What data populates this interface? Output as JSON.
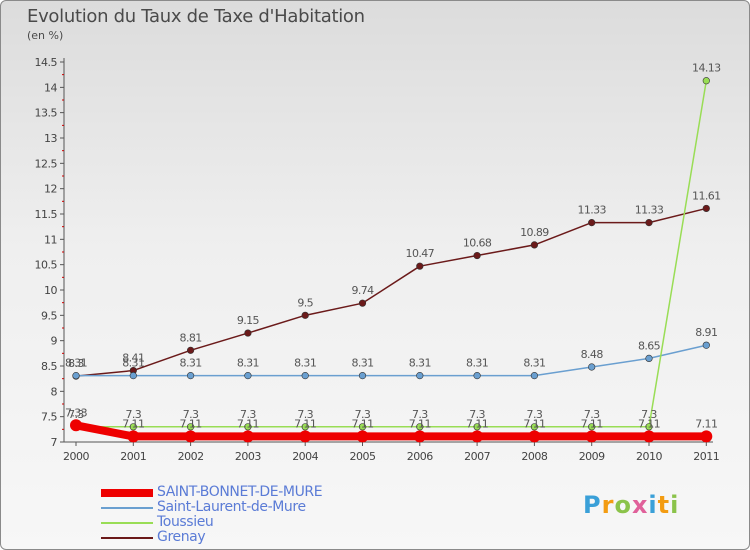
{
  "chart_data": {
    "type": "line",
    "title": "Evolution du Taux de Taxe d'Habitation",
    "subtitle": "(en %)",
    "x": [
      "2000",
      "2001",
      "2002",
      "2003",
      "2004",
      "2005",
      "2006",
      "2007",
      "2008",
      "2009",
      "2010",
      "2011"
    ],
    "ylim": [
      7,
      14.5
    ],
    "yticks": [
      "7",
      "7.5",
      "8",
      "8.5",
      "9",
      "9.5",
      "10",
      "10.5",
      "11",
      "11.5",
      "12",
      "12.5",
      "13",
      "13.5",
      "14",
      "14.5"
    ],
    "series": [
      {
        "name": "SAINT-BONNET-DE-MURE",
        "color": "#ee0000",
        "values": [
          7.33,
          7.11,
          7.11,
          7.11,
          7.11,
          7.11,
          7.11,
          7.11,
          7.11,
          7.11,
          7.11,
          7.11
        ],
        "labels": [
          "7.33",
          "7.11",
          "7.11",
          "7.11",
          "7.11",
          "7.11",
          "7.11",
          "7.11",
          "7.11",
          "7.11",
          "7.11",
          "7.11"
        ]
      },
      {
        "name": "Saint-Laurent-de-Mure",
        "color": "#6a9fd0",
        "values": [
          8.31,
          8.31,
          8.31,
          8.31,
          8.31,
          8.31,
          8.31,
          8.31,
          8.31,
          8.48,
          8.65,
          8.91
        ],
        "labels": [
          "8.31",
          "8.31",
          "8.31",
          "8.31",
          "8.31",
          "8.31",
          "8.31",
          "8.31",
          "8.31",
          "8.48",
          "8.65",
          "8.91"
        ]
      },
      {
        "name": "Toussieu",
        "color": "#99dd55",
        "values": [
          7.3,
          7.3,
          7.3,
          7.3,
          7.3,
          7.3,
          7.3,
          7.3,
          7.3,
          7.3,
          7.3,
          14.13
        ],
        "labels": [
          "7.3",
          "7.3",
          "7.3",
          "7.3",
          "7.3",
          "7.3",
          "7.3",
          "7.3",
          "7.3",
          "7.3",
          "7.3",
          "14.13"
        ]
      },
      {
        "name": "Grenay",
        "color": "#6b1a1a",
        "values": [
          8.3,
          8.41,
          8.81,
          9.15,
          9.5,
          9.74,
          10.47,
          10.68,
          10.89,
          11.33,
          11.33,
          11.61
        ],
        "labels": [
          "8.3",
          "8.41",
          "8.81",
          "9.15",
          "9.5",
          "9.74",
          "10.47",
          "10.68",
          "10.89",
          "11.33",
          "11.33",
          "11.61"
        ]
      }
    ],
    "legend_position": "bottom-left",
    "grid": false
  },
  "logo": {
    "letters": [
      "P",
      "r",
      "o",
      "x",
      "i",
      "t",
      "i"
    ]
  }
}
